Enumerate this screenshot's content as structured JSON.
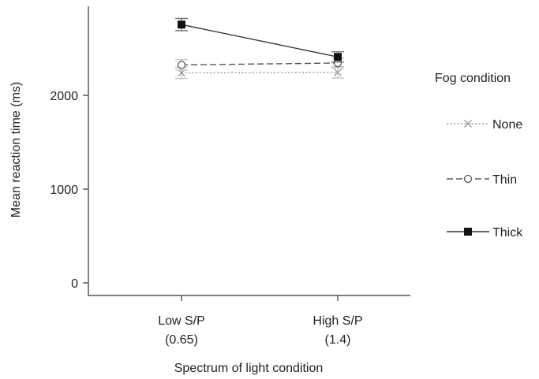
{
  "chart_data": {
    "type": "line",
    "xlabel": "Spectrum of light condition",
    "ylabel": "Mean reaction time (ms)",
    "ylim": [
      0,
      2950
    ],
    "yticks": [
      0,
      1000,
      2000
    ],
    "categories": [
      {
        "line1": "Low S/P",
        "line2": "(0.65)"
      },
      {
        "line1": "High S/P",
        "line2": "(1.4)"
      }
    ],
    "legend_title": "Fog condition",
    "legend_position": "right",
    "grid": false,
    "series": [
      {
        "name": "None",
        "values": [
          2240,
          2245
        ],
        "error": [
          60,
          60
        ],
        "marker": "x",
        "dash": "dotted",
        "color": "#9a9a9a",
        "error_color": "#c8c8c8"
      },
      {
        "name": "Thin",
        "values": [
          2325,
          2345
        ],
        "error": [
          55,
          50
        ],
        "marker": "circle",
        "dash": "dashed",
        "color": "#555555",
        "error_color": "#c8c8c8"
      },
      {
        "name": "Thick",
        "values": [
          2755,
          2410
        ],
        "error": [
          65,
          55
        ],
        "marker": "square",
        "dash": "solid",
        "color": "#333333",
        "error_color": "#777777"
      }
    ]
  }
}
